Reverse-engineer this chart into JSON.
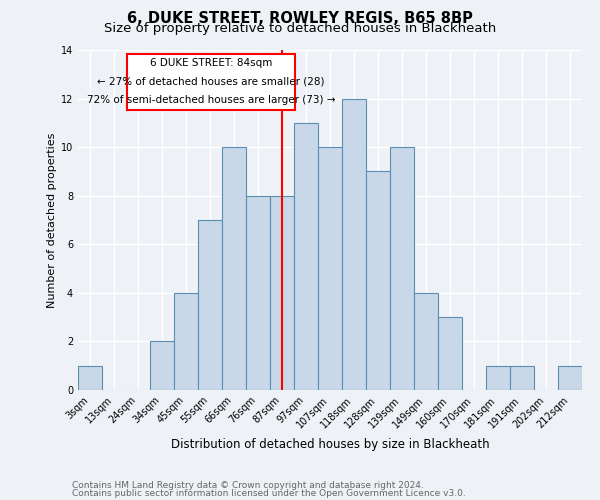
{
  "title": "6, DUKE STREET, ROWLEY REGIS, B65 8BP",
  "subtitle": "Size of property relative to detached houses in Blackheath",
  "xlabel": "Distribution of detached houses by size in Blackheath",
  "ylabel": "Number of detached properties",
  "footnote1": "Contains HM Land Registry data © Crown copyright and database right 2024.",
  "footnote2": "Contains public sector information licensed under the Open Government Licence v3.0.",
  "bar_labels": [
    "3sqm",
    "13sqm",
    "24sqm",
    "34sqm",
    "45sqm",
    "55sqm",
    "66sqm",
    "76sqm",
    "87sqm",
    "97sqm",
    "107sqm",
    "118sqm",
    "128sqm",
    "139sqm",
    "149sqm",
    "160sqm",
    "170sqm",
    "181sqm",
    "191sqm",
    "202sqm",
    "212sqm"
  ],
  "bar_heights": [
    1,
    0,
    0,
    2,
    4,
    7,
    10,
    8,
    8,
    11,
    10,
    12,
    9,
    10,
    4,
    3,
    0,
    1,
    1,
    0,
    1
  ],
  "bar_color": "#c8d8e8",
  "bar_edge_color": "#5b8db0",
  "vline_x": 8,
  "vline_color": "red",
  "annotation_line1": "6 DUKE STREET: 84sqm",
  "annotation_line2": "← 27% of detached houses are smaller (28)",
  "annotation_line3": "72% of semi-detached houses are larger (73) →",
  "annotation_box_color": "white",
  "annotation_box_edge": "red",
  "ylim": [
    0,
    14
  ],
  "yticks": [
    0,
    2,
    4,
    6,
    8,
    10,
    12,
    14
  ],
  "background_color": "#eef2f7",
  "grid_color": "white",
  "title_fontsize": 10.5,
  "subtitle_fontsize": 9.5,
  "ylabel_fontsize": 8,
  "xlabel_fontsize": 8.5,
  "tick_fontsize": 7,
  "annotation_fontsize": 7.5,
  "footnote_fontsize": 6.5
}
